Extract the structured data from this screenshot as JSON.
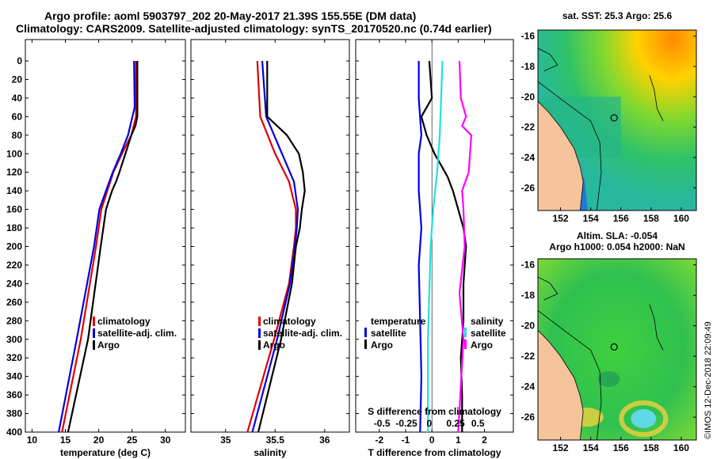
{
  "header": {
    "line1": "Argo profile: aoml 5903797_202 20-May-2017 21.39S 155.55E (DM data)",
    "line2": "Climatology: CARS2009. Satellite-adjusted climatology: synTS_20170520.nc (0.74d earlier)"
  },
  "watermark": "©IMOS 12-Dec-2018 22:09:49",
  "colors": {
    "climatology": "#e00000",
    "satellite": "#0000e0",
    "argo": "#000000",
    "t_sat": "#20e0e0",
    "s_sat": "#ff00ff"
  },
  "chart_data": [
    {
      "type": "line",
      "name": "temperature",
      "xlabel": "temperature (deg C)",
      "ylabel": "depth",
      "xlim": [
        9,
        33
      ],
      "ylim": [
        0,
        400
      ],
      "xticks": [
        10,
        15,
        20,
        25,
        30
      ],
      "yticks": [
        0,
        20,
        40,
        60,
        80,
        100,
        120,
        140,
        160,
        180,
        200,
        220,
        240,
        260,
        280,
        300,
        320,
        340,
        360,
        380,
        400
      ],
      "legend": {
        "position": "center-right",
        "entries": [
          "climatology",
          "satellite-adj. clim.",
          "Argo"
        ]
      },
      "series": [
        {
          "name": "climatology",
          "color": "#e00000",
          "depth": [
            0,
            60,
            80,
            100,
            120,
            140,
            160,
            200,
            300,
            400
          ],
          "values": [
            25.6,
            25.6,
            24.9,
            23.5,
            22.2,
            21.3,
            20.4,
            19.6,
            17.3,
            14.5
          ]
        },
        {
          "name": "satellite-adj. clim.",
          "color": "#0000e0",
          "depth": [
            0,
            50,
            80,
            100,
            120,
            140,
            160,
            200,
            300,
            400
          ],
          "values": [
            25.3,
            25.4,
            24.4,
            23.3,
            22.1,
            21.1,
            20.1,
            19.3,
            16.7,
            14.0
          ]
        },
        {
          "name": "Argo",
          "color": "#000000",
          "depth": [
            0,
            60,
            70,
            80,
            100,
            120,
            130,
            140,
            160,
            200,
            300,
            400
          ],
          "values": [
            25.8,
            25.8,
            25.5,
            24.9,
            24.0,
            23.1,
            22.6,
            22.0,
            21.1,
            20.3,
            18.4,
            15.4
          ]
        }
      ]
    },
    {
      "type": "line",
      "name": "salinity",
      "xlabel": "salinity",
      "ylabel": "depth",
      "xlim": [
        34.65,
        36.25
      ],
      "ylim": [
        0,
        400
      ],
      "xticks": [
        35,
        35.5,
        36
      ],
      "legend": {
        "position": "center-right",
        "entries": [
          "climatology",
          "satellite-adj. clim.",
          "Argo"
        ]
      },
      "series": [
        {
          "name": "climatology",
          "color": "#e00000",
          "depth": [
            0,
            60,
            100,
            130,
            160,
            180,
            200,
            240,
            300,
            400
          ],
          "values": [
            35.32,
            35.35,
            35.5,
            35.64,
            35.71,
            35.71,
            35.69,
            35.64,
            35.49,
            35.22
          ]
        },
        {
          "name": "satellite-adj. clim.",
          "color": "#0000e0",
          "depth": [
            0,
            60,
            100,
            130,
            160,
            180,
            200,
            240,
            300,
            400
          ],
          "values": [
            35.37,
            35.41,
            35.57,
            35.69,
            35.73,
            35.72,
            35.7,
            35.65,
            35.52,
            35.27
          ]
        },
        {
          "name": "Argo",
          "color": "#000000",
          "depth": [
            0,
            60,
            65,
            80,
            100,
            120,
            140,
            160,
            180,
            200,
            240,
            300,
            400
          ],
          "values": [
            35.42,
            35.42,
            35.47,
            35.62,
            35.74,
            35.78,
            35.8,
            35.77,
            35.75,
            35.71,
            35.67,
            35.56,
            35.33
          ]
        }
      ]
    },
    {
      "type": "line",
      "name": "difference",
      "xlabel": "T difference from climatology",
      "xlabel2": "S difference from climatology",
      "ylabel": "depth",
      "xlim": [
        -2.9,
        3.1
      ],
      "ylim": [
        0,
        400
      ],
      "xticks": [
        -2,
        -1,
        0,
        1,
        2
      ],
      "xticks2": {
        "positions": [
          -1.9,
          -0.97,
          -0.1,
          0.9,
          1.75
        ],
        "labels": [
          "-0.5",
          "-0.25",
          "0",
          "0.25",
          "0.5"
        ]
      },
      "legend": {
        "position": "center-right",
        "groups": [
          {
            "title": "temperature",
            "entries": [
              "satellite",
              "Argo"
            ]
          },
          {
            "title": "salinity",
            "entries": [
              "satellite",
              "Argo"
            ]
          }
        ]
      },
      "series": [
        {
          "name": "T satellite",
          "color": "#0000e0",
          "depth": [
            0,
            40,
            80,
            100,
            140,
            180,
            220,
            280,
            340,
            400
          ],
          "values": [
            -0.5,
            -0.5,
            -0.4,
            -0.5,
            -0.5,
            -0.4,
            -0.5,
            -0.45,
            -0.4,
            -0.45
          ]
        },
        {
          "name": "T Argo",
          "color": "#000000",
          "depth": [
            0,
            40,
            60,
            80,
            100,
            115,
            125,
            140,
            160,
            180,
            200,
            240,
            280,
            320,
            360,
            400
          ],
          "values": [
            -0.1,
            0,
            -0.4,
            -0.2,
            0.1,
            0.4,
            0.6,
            0.8,
            1.0,
            1.2,
            1.3,
            1.2,
            1.2,
            1.1,
            1.15,
            1.15
          ]
        },
        {
          "name": "S satellite",
          "color": "#20e0e0",
          "depth": [
            0,
            40,
            80,
            120,
            160,
            200,
            250,
            300,
            350,
            400
          ],
          "values": [
            0.4,
            0.35,
            0.3,
            0.2,
            0.05,
            -0.05,
            -0.1,
            -0.15,
            -0.15,
            -0.15
          ]
        },
        {
          "name": "S Argo",
          "color": "#ff00ff",
          "depth": [
            0,
            40,
            60,
            70,
            80,
            100,
            120,
            140,
            160,
            200,
            250,
            300,
            350,
            400
          ],
          "values": [
            1.05,
            1.1,
            1.3,
            1.15,
            1.5,
            1.45,
            1.4,
            1.15,
            1.2,
            1.25,
            1.05,
            1.2,
            1.1,
            1.0
          ]
        }
      ]
    },
    {
      "type": "heatmap",
      "name": "sst-map",
      "title": "sat. SST: 25.3 Argo: 25.6",
      "xlim": [
        150.5,
        161
      ],
      "ylim": [
        -27.5,
        -15.6
      ],
      "xticks": [
        152,
        154,
        156,
        158,
        160
      ],
      "yticks": [
        -16,
        -18,
        -20,
        -22,
        -24,
        -26
      ],
      "argo_position": [
        155.55,
        -21.39
      ]
    },
    {
      "type": "heatmap",
      "name": "sla-map",
      "title": "Altim. SLA: -0.054",
      "subtitle": "Argo h1000: 0.054 h2000: NaN",
      "xlim": [
        150.5,
        161
      ],
      "ylim": [
        -27.5,
        -15.6
      ],
      "xticks": [
        152,
        154,
        156,
        158,
        160
      ],
      "yticks": [
        -16,
        -18,
        -20,
        -22,
        -24,
        -26
      ],
      "argo_position": [
        155.55,
        -21.39
      ]
    }
  ]
}
